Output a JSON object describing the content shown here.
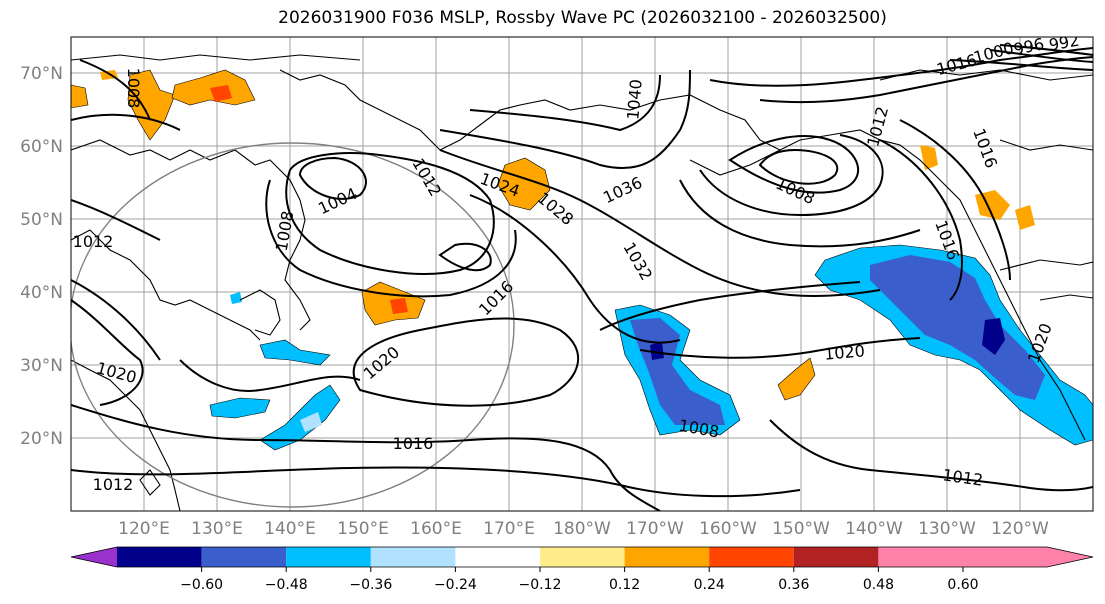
{
  "title": "2026031900 F036 MSLP, Rossby Wave PC (2026032100 - 2026032500)",
  "lat_labels": [
    "70°N",
    "60°N",
    "50°N",
    "40°N",
    "30°N",
    "20°N"
  ],
  "lon_labels": [
    "120°E",
    "130°E",
    "140°E",
    "150°E",
    "160°E",
    "170°E",
    "180°W",
    "170°W",
    "160°W",
    "150°W",
    "140°W",
    "130°W",
    "120°W"
  ],
  "contour_labels": [
    "1008",
    "1004",
    "1012",
    "1008",
    "1024",
    "1028",
    "1040",
    "1036",
    "1032",
    "1016",
    "1020",
    "1020",
    "1016",
    "1012",
    "1012",
    "1020",
    "1008",
    "1008",
    "1016",
    "1012",
    "1012",
    "1016",
    "1020",
    "1016",
    "1000",
    "996",
    "992"
  ],
  "colorbar": {
    "tick_labels": [
      "−0.60",
      "−0.48",
      "−0.36",
      "−0.24",
      "−0.12",
      "0.12",
      "0.24",
      "0.36",
      "0.48",
      "0.60"
    ],
    "colors": [
      "#9932cc",
      "#00008b",
      "#3a5fcd",
      "#00bfff",
      "#b0e2ff",
      "#ffffff",
      "#ffec8b",
      "#ffa500",
      "#ff4500",
      "#b22222",
      "#ff82ab"
    ]
  }
}
